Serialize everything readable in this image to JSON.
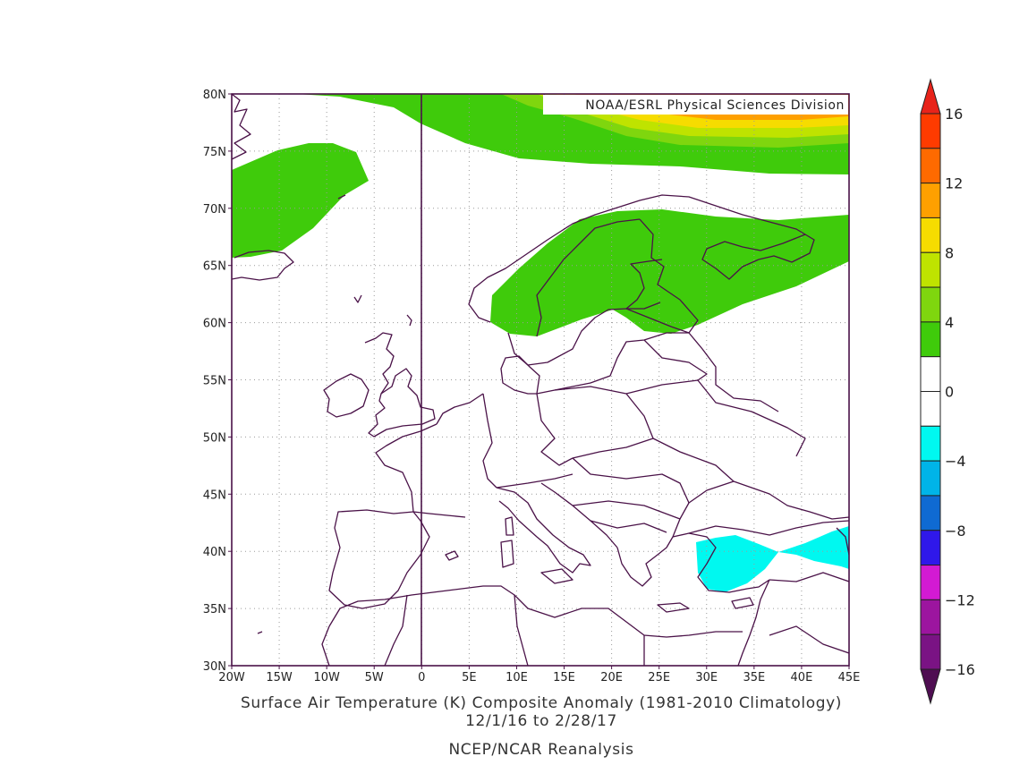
{
  "map": {
    "credit": "NOAA/ESRL Physical Sciences Division",
    "lat_labels": [
      "80N",
      "75N",
      "70N",
      "65N",
      "60N",
      "55N",
      "50N",
      "45N",
      "40N",
      "35N",
      "30N"
    ],
    "lon_labels": [
      "20W",
      "15W",
      "10W",
      "5W",
      "0",
      "5E",
      "10E",
      "15E",
      "20E",
      "25E",
      "30E",
      "35E",
      "40E",
      "45E"
    ],
    "extent": {
      "lon_min": -20,
      "lon_max": 45,
      "lat_min": 30,
      "lat_max": 80
    }
  },
  "colorbar": {
    "labels": [
      "16",
      "12",
      "8",
      "4",
      "0",
      "−4",
      "−8",
      "−12",
      "−16"
    ],
    "levels_top_to_bottom": [
      {
        "range": "> 16",
        "color": "#e8231a"
      },
      {
        "range": "14 to 16",
        "color": "#fe3b00"
      },
      {
        "range": "12 to 14",
        "color": "#fe6a00"
      },
      {
        "range": "10 to 12",
        "color": "#fea000"
      },
      {
        "range": "8 to 10",
        "color": "#f6dc00"
      },
      {
        "range": "6 to 8",
        "color": "#bfe300"
      },
      {
        "range": "4 to 6",
        "color": "#7fd60e"
      },
      {
        "range": "2 to 4",
        "color": "#3fcb0b"
      },
      {
        "range": "0 to 2",
        "color": "#ffffff"
      },
      {
        "range": "-2 to 0",
        "color": "#ffffff"
      },
      {
        "range": "-4 to -2",
        "color": "#00f8f0"
      },
      {
        "range": "-6 to -4",
        "color": "#00b4e8"
      },
      {
        "range": "-8 to -6",
        "color": "#0f6ad2"
      },
      {
        "range": "-10 to -8",
        "color": "#2f18ea"
      },
      {
        "range": "-12 to -10",
        "color": "#d31ad3"
      },
      {
        "range": "-14 to -12",
        "color": "#9c159f"
      },
      {
        "range": "-16 to -14",
        "color": "#7a1384"
      },
      {
        "range": "< -16",
        "color": "#4f0e52"
      }
    ]
  },
  "titles": {
    "line1": "Surface Air Temperature (K) Composite Anomaly (1981-2010 Climatology)",
    "line2": "12/1/16  to 2/28/17",
    "line3": "NCEP/NCAR Reanalysis"
  }
}
